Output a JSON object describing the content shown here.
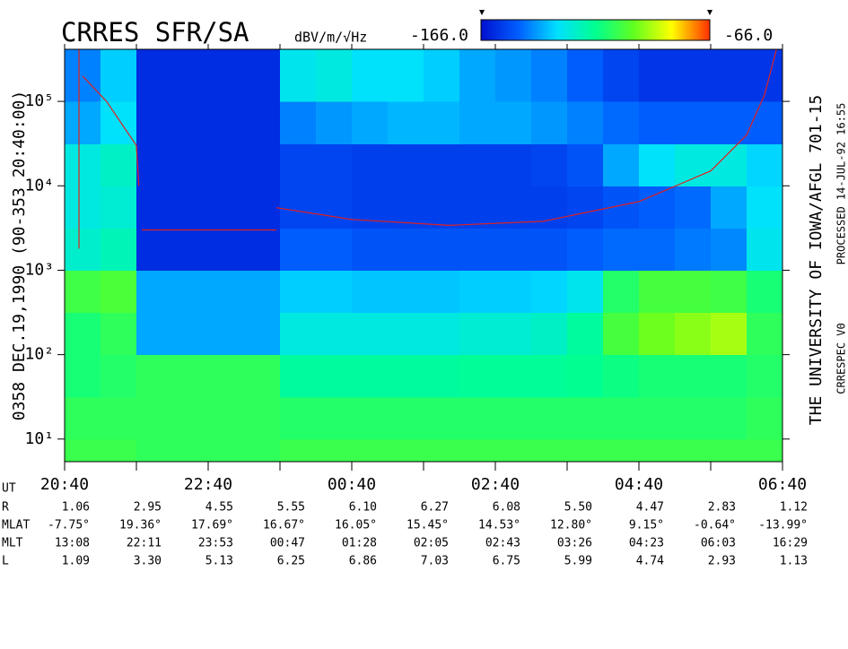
{
  "chart_data": {
    "type": "spectrogram",
    "title": "CRRES SFR/SA",
    "units": "dBV/m/√Hz",
    "clim": [
      {
        "value": -166,
        "label": "-166.0"
      },
      {
        "value": -66,
        "label": "-66.0"
      }
    ],
    "colormap": [
      "#0010d0",
      "#0060ff",
      "#00e0ff",
      "#00ff90",
      "#60ff20",
      "#ffff00",
      "#ff3000"
    ],
    "left_label": "0358   DEC.19,1990  (90-353 20:40:00)",
    "right_label": "THE UNIVERSITY OF IOWA/AFGL 701-15",
    "right_note_top": "PROCESSED 14-JUL-92  16:55",
    "right_note_bottom": "CRRESPEC V0",
    "log_y": true,
    "xlim": [
      0,
      600
    ],
    "ylim": [
      5.4,
      414000
    ],
    "xticks": [
      {
        "value": 0,
        "label": "20:40"
      },
      {
        "value": 120,
        "label": "22:40"
      },
      {
        "value": 240,
        "label": "00:40"
      },
      {
        "value": 360,
        "label": "02:40"
      },
      {
        "value": 480,
        "label": "04:40"
      },
      {
        "value": 600,
        "label": "06:40"
      }
    ],
    "xminor": [
      60,
      180,
      300,
      420,
      540
    ],
    "yticks": [
      {
        "value": 10,
        "label": "10¹"
      },
      {
        "value": 100,
        "label": "10²"
      },
      {
        "value": 1000,
        "label": "10³"
      },
      {
        "value": 10000,
        "label": "10⁴"
      },
      {
        "value": 100000,
        "label": "10⁵"
      }
    ],
    "xbins": [
      0,
      30,
      60,
      90,
      120,
      150,
      180,
      210,
      240,
      270,
      300,
      330,
      360,
      390,
      420,
      450,
      480,
      510,
      540,
      570,
      600
    ],
    "ybins": [
      5.4,
      10,
      31.6,
      100,
      316,
      1000,
      3162,
      10000,
      31623,
      100000,
      414000
    ],
    "z": [
      [
        -106,
        -108,
        -112,
        -112,
        -105,
        -125,
        -128,
        -128,
        -140,
        -145
      ],
      [
        -106,
        -108,
        -110,
        -108,
        -103,
        -122,
        -126,
        -124,
        -132,
        -135
      ],
      [
        -108,
        -108,
        -108,
        -140,
        -140,
        -160,
        -160,
        -160,
        -160,
        -160
      ],
      [
        -108,
        -108,
        -108,
        -140,
        -140,
        -160,
        -160,
        -160,
        -160,
        -160
      ],
      [
        -108,
        -108,
        -108,
        -140,
        -140,
        -160,
        -160,
        -160,
        -160,
        -160
      ],
      [
        -108,
        -108,
        -108,
        -140,
        -140,
        -160,
        -160,
        -160,
        -160,
        -160
      ],
      [
        -106,
        -110,
        -118,
        -128,
        -135,
        -150,
        -155,
        -155,
        -145,
        -130
      ],
      [
        -106,
        -110,
        -118,
        -128,
        -135,
        -150,
        -155,
        -155,
        -142,
        -128
      ],
      [
        -106,
        -110,
        -118,
        -128,
        -136,
        -152,
        -156,
        -156,
        -140,
        -132
      ],
      [
        -106,
        -110,
        -118,
        -128,
        -136,
        -152,
        -156,
        -156,
        -138,
        -132
      ],
      [
        -106,
        -110,
        -118,
        -128,
        -136,
        -152,
        -156,
        -156,
        -138,
        -135
      ],
      [
        -106,
        -110,
        -117,
        -126,
        -135,
        -152,
        -156,
        -156,
        -140,
        -140
      ],
      [
        -106,
        -110,
        -117,
        -126,
        -135,
        -152,
        -156,
        -156,
        -140,
        -142
      ],
      [
        -106,
        -110,
        -117,
        -124,
        -134,
        -152,
        -156,
        -155,
        -142,
        -145
      ],
      [
        -106,
        -110,
        -116,
        -118,
        -130,
        -150,
        -155,
        -152,
        -145,
        -150
      ],
      [
        -106,
        -110,
        -114,
        -104,
        -110,
        -148,
        -152,
        -140,
        -148,
        -155
      ],
      [
        -106,
        -110,
        -112,
        -98,
        -104,
        -148,
        -150,
        -132,
        -150,
        -158
      ],
      [
        -106,
        -110,
        -112,
        -95,
        -104,
        -146,
        -148,
        -128,
        -150,
        -158
      ],
      [
        -106,
        -110,
        -112,
        -92,
        -105,
        -144,
        -140,
        -128,
        -150,
        -158
      ],
      [
        -106,
        -108,
        -110,
        -108,
        -112,
        -130,
        -132,
        -134,
        -150,
        -158
      ]
    ],
    "curve": {
      "color": "#e02020",
      "x": [
        12,
        12,
        null,
        15,
        35,
        60,
        62,
        null,
        64.5,
        177,
        null,
        177,
        240,
        321,
        400,
        480,
        540,
        570,
        585,
        595
      ],
      "y": [
        414000,
        1800,
        null,
        200000,
        100000,
        30000,
        10000,
        null,
        3000,
        3000,
        null,
        5500,
        4000,
        3400,
        3800,
        6500,
        15000,
        40000,
        120000,
        414000
      ]
    },
    "ephemeris": {
      "ut_label": "UT",
      "rows": [
        {
          "label": "R",
          "values": [
            "1.06",
            "2.95",
            "4.55",
            "5.55",
            "6.10",
            "6.27",
            "6.08",
            "5.50",
            "4.47",
            "2.83",
            "1.12"
          ]
        },
        {
          "label": "MLAT",
          "values": [
            "-7.75°",
            "19.36°",
            "17.69°",
            "16.67°",
            "16.05°",
            "15.45°",
            "14.53°",
            "12.80°",
            "9.15°",
            "-0.64°",
            "-13.99°"
          ]
        },
        {
          "label": "MLT",
          "values": [
            "13:08",
            "22:11",
            "23:53",
            "00:47",
            "01:28",
            "02:05",
            "02:43",
            "03:26",
            "04:23",
            "06:03",
            "16:29"
          ]
        },
        {
          "label": "L",
          "values": [
            "1.09",
            "3.30",
            "5.13",
            "6.25",
            "6.86",
            "7.03",
            "6.75",
            "5.99",
            "4.74",
            "2.93",
            "1.13"
          ]
        }
      ]
    }
  }
}
